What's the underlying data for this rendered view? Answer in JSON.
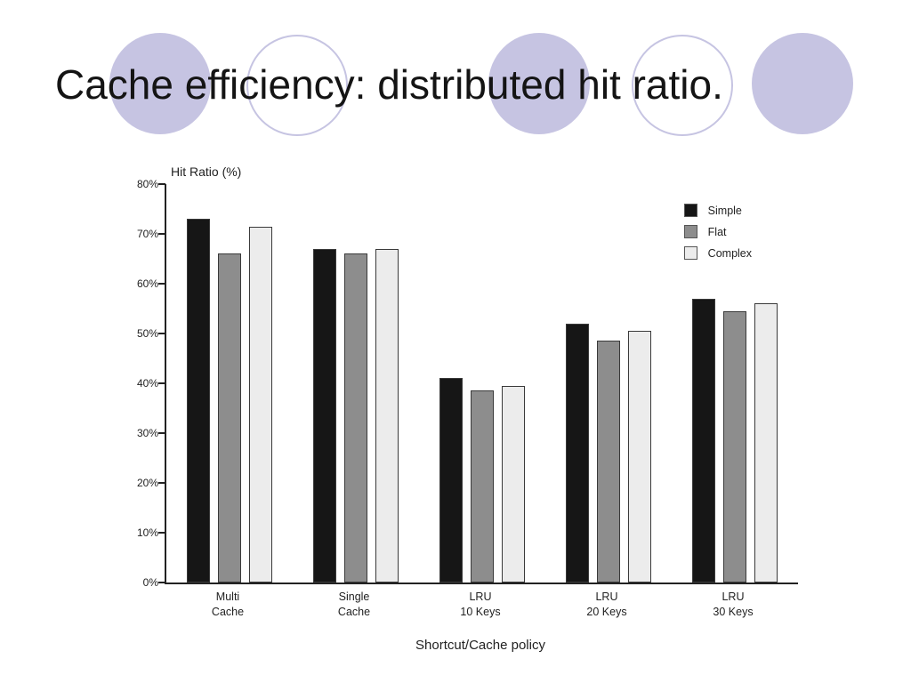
{
  "slide": {
    "title": "Cache efficiency: distributed hit ratio."
  },
  "decor": {
    "circle_color": "#c6c4e2"
  },
  "chart_data": {
    "type": "bar",
    "title": "Hit Ratio (%)",
    "xlabel": "Shortcut/Cache policy",
    "ylabel": "Hit Ratio (%)",
    "ylim": [
      0,
      80
    ],
    "ytick_step": 10,
    "ytick_labels": [
      "0%",
      "10%",
      "20%",
      "30%",
      "40%",
      "50%",
      "60%",
      "70%",
      "80%"
    ],
    "grid": false,
    "legend_position": "top-right",
    "categories": [
      "Multi\nCache",
      "Single\nCache",
      "LRU\n10 Keys",
      "LRU\n20 Keys",
      "LRU\n30 Keys"
    ],
    "series": [
      {
        "name": "Simple",
        "color": "#161616",
        "values": [
          73,
          67,
          41,
          52,
          57
        ]
      },
      {
        "name": "Flat",
        "color": "#8d8d8d",
        "values": [
          66,
          66,
          38.5,
          48.5,
          54.5
        ]
      },
      {
        "name": "Complex",
        "color": "#ececec",
        "values": [
          71.5,
          67,
          39.5,
          50.5,
          56
        ]
      }
    ]
  }
}
